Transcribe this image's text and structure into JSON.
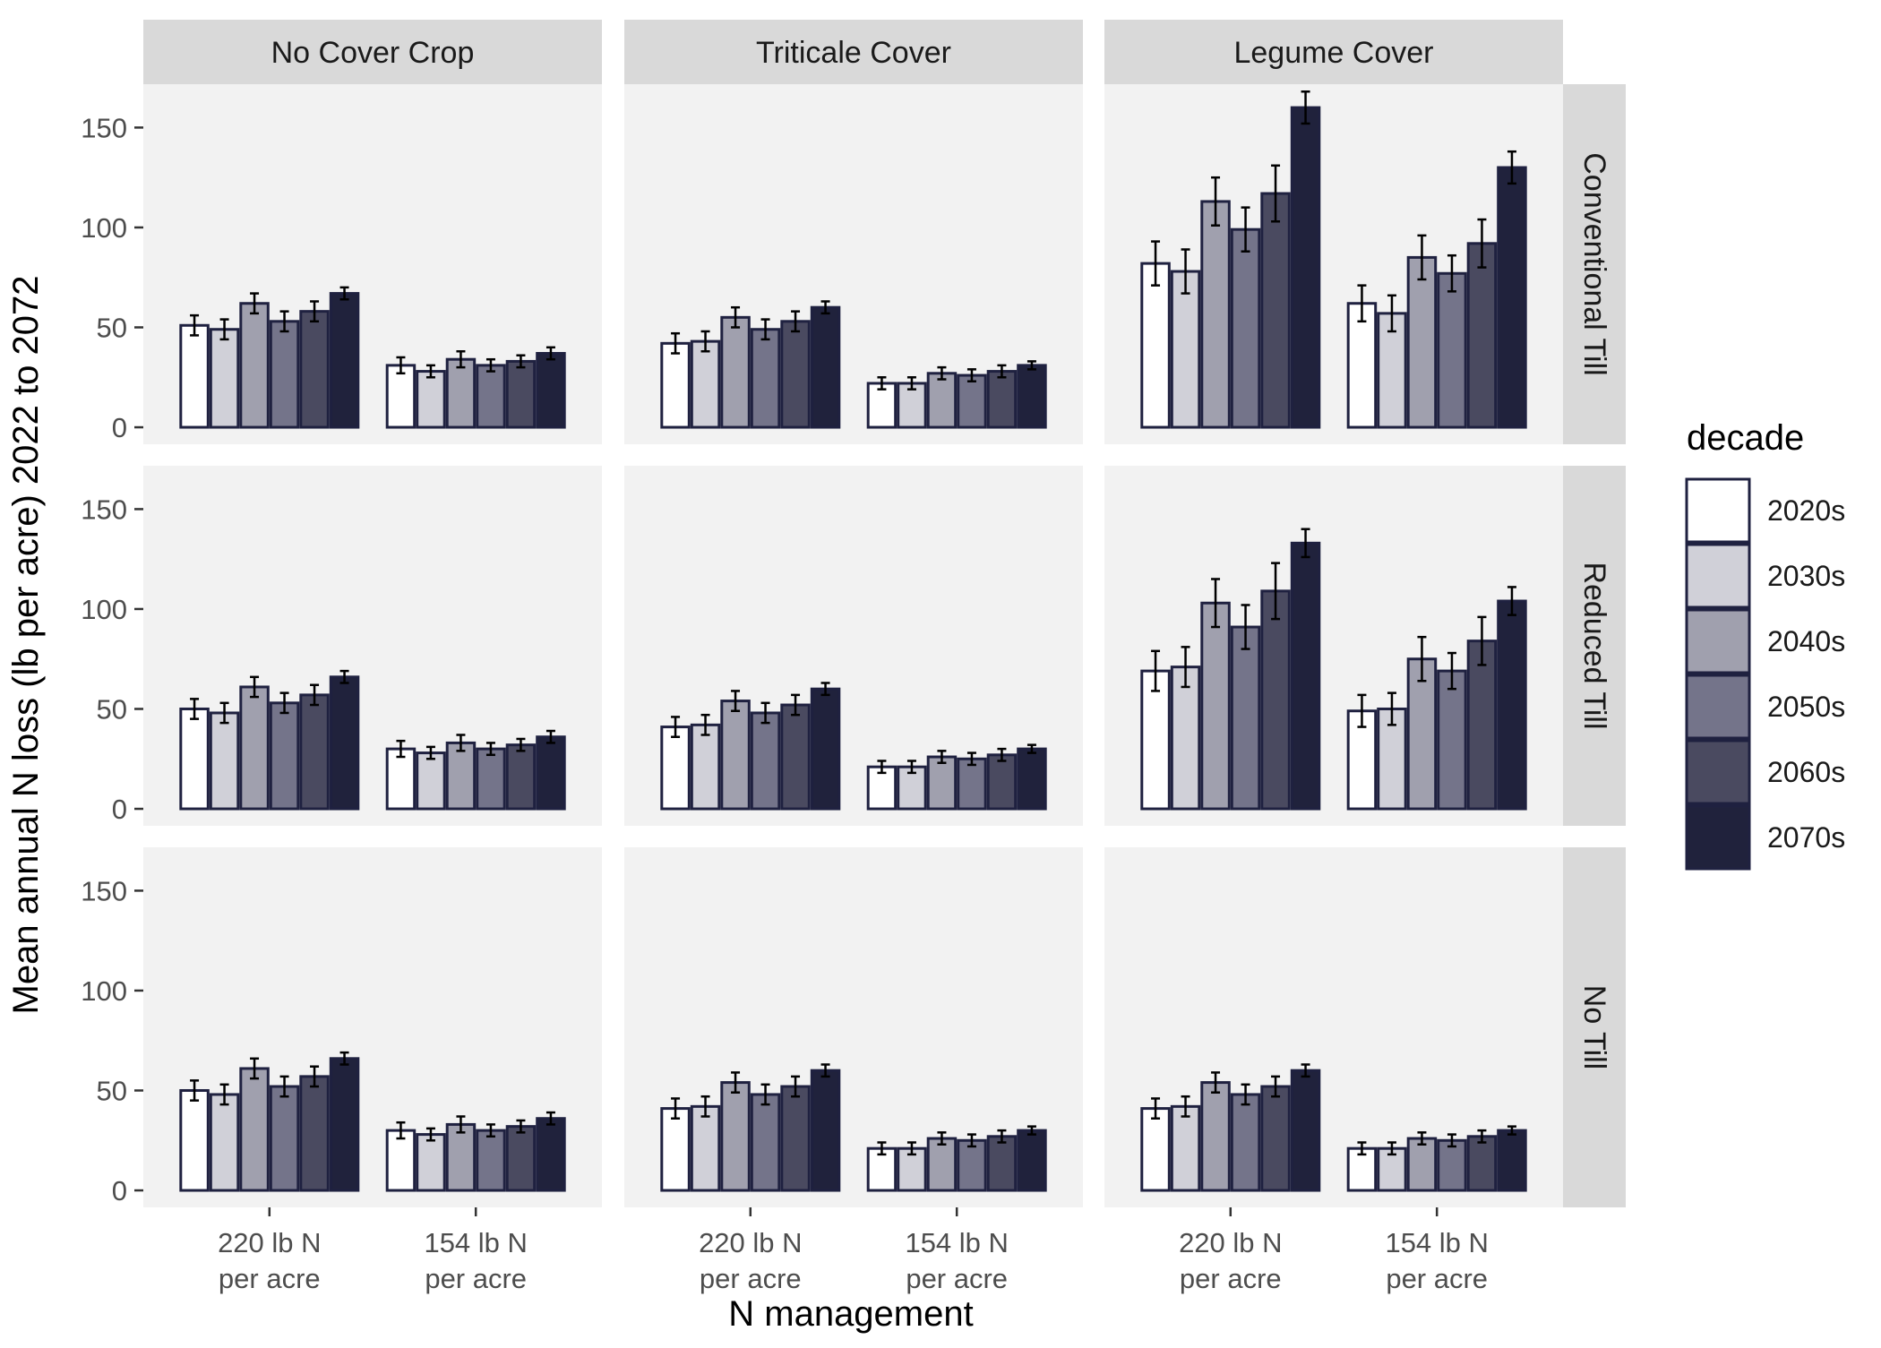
{
  "chart_data": {
    "type": "bar",
    "facet_columns": [
      "No Cover Crop",
      "Triticale Cover",
      "Legume Cover"
    ],
    "facet_rows": [
      "Conventional Till",
      "Reduced Till",
      "No Till"
    ],
    "categories": [
      "220 lb N\nper acre",
      "154 lb N\nper acre"
    ],
    "xlabel": "N management",
    "ylabel": "Mean annual N loss (lb per acre) 2022 to 2072",
    "ylim": [
      0,
      170
    ],
    "yticks": [
      0,
      50,
      100,
      150
    ],
    "grid": false,
    "legend": {
      "title": "decade",
      "position": "right"
    },
    "series": [
      {
        "name": "2020s",
        "color": "#ffffff"
      },
      {
        "name": "2030s",
        "color": "#d0d0d8"
      },
      {
        "name": "2040s",
        "color": "#a0a0ae"
      },
      {
        "name": "2050s",
        "color": "#74748a"
      },
      {
        "name": "2060s",
        "color": "#4a4a60"
      },
      {
        "name": "2070s",
        "color": "#20223c"
      }
    ],
    "panels": [
      {
        "row": "Conventional Till",
        "col": "No Cover Crop",
        "groups": [
          {
            "values": [
              51,
              49,
              62,
              53,
              58,
              67
            ],
            "errors": [
              5,
              5,
              5,
              5,
              5,
              3
            ]
          },
          {
            "values": [
              31,
              28,
              34,
              31,
              33,
              37
            ],
            "errors": [
              4,
              3,
              4,
              3,
              3,
              3
            ]
          }
        ]
      },
      {
        "row": "Conventional Till",
        "col": "Triticale Cover",
        "groups": [
          {
            "values": [
              42,
              43,
              55,
              49,
              53,
              60
            ],
            "errors": [
              5,
              5,
              5,
              5,
              5,
              3
            ]
          },
          {
            "values": [
              22,
              22,
              27,
              26,
              28,
              31
            ],
            "errors": [
              3,
              3,
              3,
              3,
              3,
              2
            ]
          }
        ]
      },
      {
        "row": "Conventional Till",
        "col": "Legume Cover",
        "groups": [
          {
            "values": [
              82,
              78,
              113,
              99,
              117,
              160
            ],
            "errors": [
              11,
              11,
              12,
              11,
              14,
              8
            ]
          },
          {
            "values": [
              62,
              57,
              85,
              77,
              92,
              130
            ],
            "errors": [
              9,
              9,
              11,
              9,
              12,
              8
            ]
          }
        ]
      },
      {
        "row": "Reduced Till",
        "col": "No Cover Crop",
        "groups": [
          {
            "values": [
              50,
              48,
              61,
              53,
              57,
              66
            ],
            "errors": [
              5,
              5,
              5,
              5,
              5,
              3
            ]
          },
          {
            "values": [
              30,
              28,
              33,
              30,
              32,
              36
            ],
            "errors": [
              4,
              3,
              4,
              3,
              3,
              3
            ]
          }
        ]
      },
      {
        "row": "Reduced Till",
        "col": "Triticale Cover",
        "groups": [
          {
            "values": [
              41,
              42,
              54,
              48,
              52,
              60
            ],
            "errors": [
              5,
              5,
              5,
              5,
              5,
              3
            ]
          },
          {
            "values": [
              21,
              21,
              26,
              25,
              27,
              30
            ],
            "errors": [
              3,
              3,
              3,
              3,
              3,
              2
            ]
          }
        ]
      },
      {
        "row": "Reduced Till",
        "col": "Legume Cover",
        "groups": [
          {
            "values": [
              69,
              71,
              103,
              91,
              109,
              133
            ],
            "errors": [
              10,
              10,
              12,
              11,
              14,
              7
            ]
          },
          {
            "values": [
              49,
              50,
              75,
              69,
              84,
              104
            ],
            "errors": [
              8,
              8,
              11,
              9,
              12,
              7
            ]
          }
        ]
      },
      {
        "row": "No Till",
        "col": "No Cover Crop",
        "groups": [
          {
            "values": [
              50,
              48,
              61,
              52,
              57,
              66
            ],
            "errors": [
              5,
              5,
              5,
              5,
              5,
              3
            ]
          },
          {
            "values": [
              30,
              28,
              33,
              30,
              32,
              36
            ],
            "errors": [
              4,
              3,
              4,
              3,
              3,
              3
            ]
          }
        ]
      },
      {
        "row": "No Till",
        "col": "Triticale Cover",
        "groups": [
          {
            "values": [
              41,
              42,
              54,
              48,
              52,
              60
            ],
            "errors": [
              5,
              5,
              5,
              5,
              5,
              3
            ]
          },
          {
            "values": [
              21,
              21,
              26,
              25,
              27,
              30
            ],
            "errors": [
              3,
              3,
              3,
              3,
              3,
              2
            ]
          }
        ]
      },
      {
        "row": "No Till",
        "col": "Legume Cover",
        "groups": [
          {
            "values": [
              41,
              42,
              54,
              48,
              52,
              60
            ],
            "errors": [
              5,
              5,
              5,
              5,
              5,
              3
            ]
          },
          {
            "values": [
              21,
              21,
              26,
              25,
              27,
              30
            ],
            "errors": [
              3,
              3,
              3,
              3,
              3,
              2
            ]
          }
        ]
      }
    ]
  }
}
